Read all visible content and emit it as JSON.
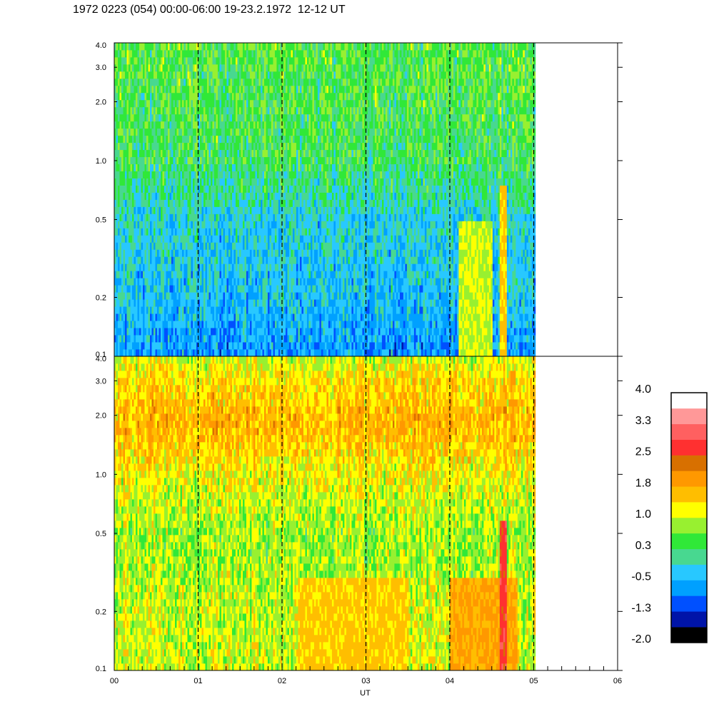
{
  "title": "1972 0223 (054) 00:00-06:00 19-23.2.1972  12-12 UT",
  "chart_data": [
    {
      "type": "heatmap",
      "panel": "upper",
      "xlabel": "",
      "ylabel": "",
      "xlim": [
        0,
        6
      ],
      "data_end_x": 5.02,
      "ylim": [
        0.1,
        4.0
      ],
      "yscale": "log",
      "y_ticks": [
        0.1,
        0.2,
        0.5,
        1.0,
        2.0,
        3.0,
        4.0
      ],
      "y_tick_labels": [
        "0.1",
        "0.2",
        "0.5",
        "1.0",
        "2.0",
        "3.0",
        "4.0"
      ],
      "dashed_vlines": [
        1,
        2,
        3,
        4,
        5
      ],
      "approx_level_profile": [
        {
          "y": 4.0,
          "level": 0.5
        },
        {
          "y": 2.0,
          "level": 0.4
        },
        {
          "y": 1.0,
          "level": 0.3
        },
        {
          "y": 0.5,
          "level": -0.2
        },
        {
          "y": 0.2,
          "level": -0.4
        },
        {
          "y": 0.1,
          "level": -0.7
        }
      ],
      "features": [
        {
          "x_start": 4.1,
          "x_end": 4.5,
          "y_min": 0.1,
          "y_max": 0.5,
          "level": 1.0
        },
        {
          "x_start": 4.6,
          "x_end": 4.68,
          "y_min": 0.1,
          "y_max": 0.75,
          "level": 1.5
        }
      ]
    },
    {
      "type": "heatmap",
      "panel": "lower",
      "xlabel": "UT",
      "ylabel": "",
      "xlim": [
        0,
        6
      ],
      "data_end_x": 5.02,
      "ylim": [
        0.1,
        4.0
      ],
      "yscale": "log",
      "x_ticks": [
        0,
        1,
        2,
        3,
        4,
        5,
        6
      ],
      "x_tick_labels": [
        "00",
        "01",
        "02",
        "03",
        "04",
        "05",
        "06"
      ],
      "y_ticks": [
        0.1,
        0.2,
        0.5,
        1.0,
        2.0,
        3.0,
        4.0
      ],
      "y_tick_labels": [
        "0.1",
        "0.2",
        "0.5",
        "1.0",
        "2.0",
        "3.0",
        "4.0"
      ],
      "dashed_vlines": [
        1,
        2,
        3,
        4,
        5
      ],
      "approx_level_profile": [
        {
          "y": 4.0,
          "level": 1.0
        },
        {
          "y": 3.0,
          "level": 1.4
        },
        {
          "y": 1.8,
          "level": 1.7
        },
        {
          "y": 1.0,
          "level": 1.2
        },
        {
          "y": 0.5,
          "level": 0.8
        },
        {
          "y": 0.2,
          "level": 1.0
        },
        {
          "y": 0.1,
          "level": 1.0
        }
      ],
      "features": [
        {
          "x_start": 2.2,
          "x_end": 3.5,
          "y_min": 0.1,
          "y_max": 0.3,
          "level": 1.5
        },
        {
          "x_start": 4.0,
          "x_end": 4.8,
          "y_min": 0.1,
          "y_max": 0.3,
          "level": 1.8
        },
        {
          "x_start": 4.6,
          "x_end": 4.68,
          "y_min": 0.1,
          "y_max": 0.6,
          "level": 2.7
        }
      ]
    }
  ],
  "colorbar": {
    "tick_labels": [
      "4.0",
      "3.3",
      "2.5",
      "1.8",
      "1.0",
      "0.3",
      "-0.5",
      "-1.3",
      "-2.0"
    ],
    "range": [
      -2.0,
      4.0
    ],
    "colors_bottom_to_top": [
      "#000000",
      "#0014a8",
      "#0050ff",
      "#00a0ff",
      "#28c8ff",
      "#48d890",
      "#30e838",
      "#98f030",
      "#ffff00",
      "#ffbe00",
      "#ff9800",
      "#d87000",
      "#ff3030",
      "#ff6060",
      "#ff9898",
      "#ffffff"
    ]
  }
}
